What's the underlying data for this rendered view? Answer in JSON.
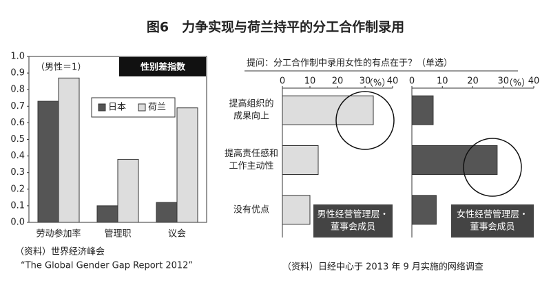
{
  "title": "图6　力争实现与荷兰持平的分工合作制录用",
  "question": "提问：分工合作制中录用女性的有点在于？（单选）",
  "chart_data": [
    {
      "type": "bar",
      "note": "（男性＝1）",
      "label_box": "性别差指数",
      "categories": [
        "劳动参加率",
        "管理职",
        "议会"
      ],
      "series": [
        {
          "name": "日本",
          "color": "#555555",
          "values": [
            0.73,
            0.1,
            0.12
          ]
        },
        {
          "name": "荷兰",
          "color": "#dddddd",
          "values": [
            0.87,
            0.38,
            0.69
          ]
        }
      ],
      "ylim": [
        0,
        1
      ],
      "yticks": [
        {
          "value": 0,
          "label": "0.0"
        },
        0.1,
        0.2,
        0.3,
        0.4,
        0.5,
        0.6,
        0.7,
        0.8,
        0.9,
        {
          "value": 1,
          "label": "1.0"
        }
      ],
      "source": [
        "（资料）世界经济峰会",
        "“The Global Gender Gap Report 2012”"
      ]
    },
    {
      "type": "bar",
      "orientation": "horizontal",
      "categories": [
        [
          "提高组织的",
          "成果向上"
        ],
        [
          "提高责任感和",
          "工作主动性"
        ],
        [
          "没有优点"
        ]
      ],
      "series_label": [
        "男性经营管理层・",
        "董事会成员"
      ],
      "values": [
        33,
        13,
        10
      ],
      "color": "#dddddd",
      "xlim": [
        0,
        40
      ],
      "xticks": [
        0,
        10,
        20,
        30,
        40
      ],
      "unit": "（%）"
    },
    {
      "type": "bar",
      "orientation": "horizontal",
      "series_label": [
        "女性经营管理层・",
        "董事会成员"
      ],
      "values": [
        7,
        28,
        8
      ],
      "color": "#555555",
      "xlim": [
        0,
        40
      ],
      "xticks": [
        0,
        10,
        20,
        30,
        40
      ],
      "unit": "（%）"
    }
  ],
  "source_right": "（资料）日经中心于 2013 年 9 月实施的网络调查"
}
